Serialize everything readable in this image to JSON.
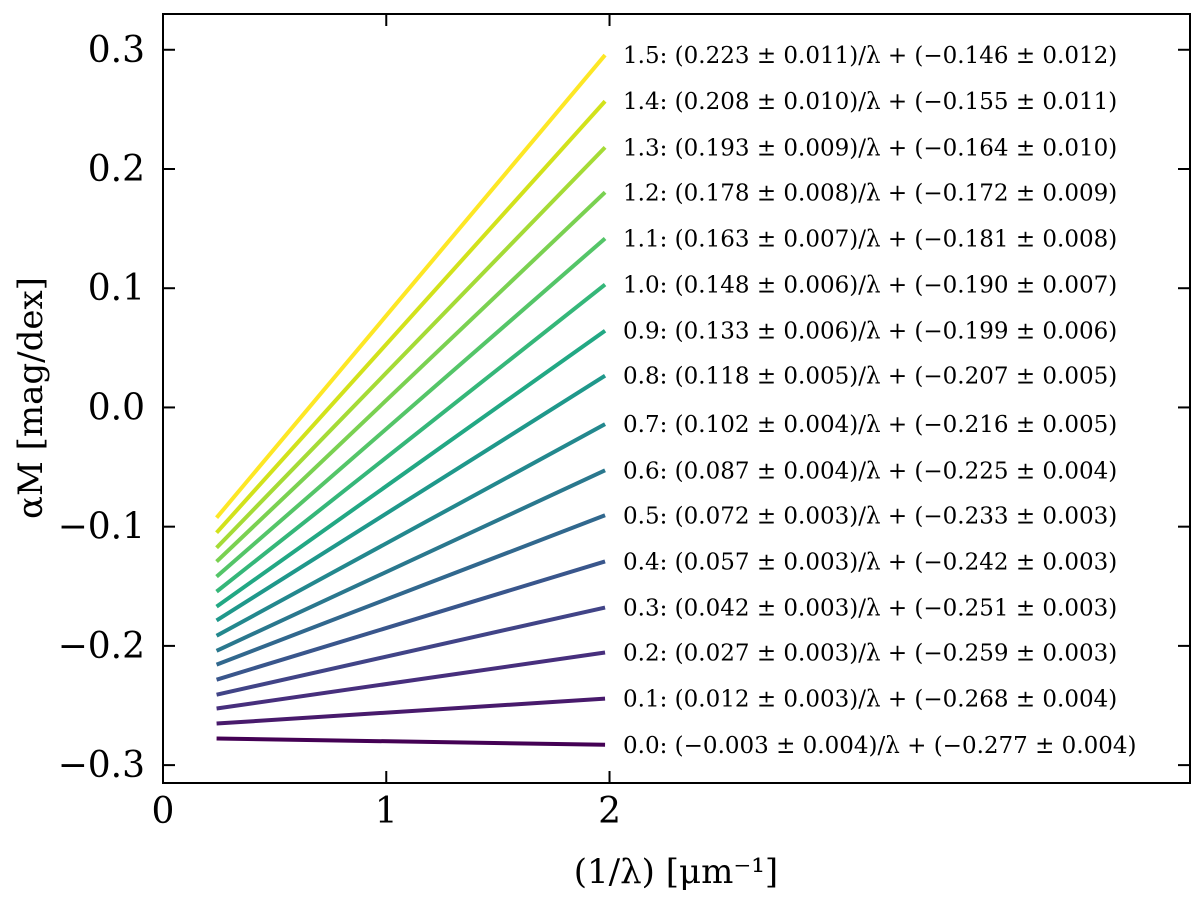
{
  "chart_data": {
    "type": "line",
    "title": "",
    "xlabel": "(1/λ) [μm⁻¹]",
    "ylabel": "αM [mag/dex]",
    "xlim": [
      0,
      4.6
    ],
    "ylim": [
      -0.315,
      0.33
    ],
    "x_ticks": [
      0,
      1,
      2
    ],
    "x_tick_labels": [
      "0",
      "1",
      "2"
    ],
    "y_ticks": [
      -0.3,
      -0.2,
      -0.1,
      0.0,
      0.1,
      0.2,
      0.3
    ],
    "y_tick_labels": [
      "−0.3",
      "−0.2",
      "−0.1",
      "0.0",
      "0.1",
      "0.2",
      "0.3"
    ],
    "x_start": 0.24,
    "x_end": 1.98,
    "grid": false,
    "series": [
      {
        "name": "0.0",
        "slope": -0.003,
        "intercept": -0.277,
        "color": "#440154",
        "label": "0.0: (−0.003 ± 0.004)/λ + (−0.277 ± 0.004)"
      },
      {
        "name": "0.1",
        "slope": 0.012,
        "intercept": -0.268,
        "color": "#481a6c",
        "label": "0.1: (0.012 ± 0.003)/λ + (−0.268 ± 0.004)"
      },
      {
        "name": "0.2",
        "slope": 0.027,
        "intercept": -0.259,
        "color": "#472f7d",
        "label": "0.2: (0.027 ± 0.003)/λ + (−0.259 ± 0.003)"
      },
      {
        "name": "0.3",
        "slope": 0.042,
        "intercept": -0.251,
        "color": "#414487",
        "label": "0.3: (0.042 ± 0.003)/λ + (−0.251 ± 0.003)"
      },
      {
        "name": "0.4",
        "slope": 0.057,
        "intercept": -0.242,
        "color": "#39568c",
        "label": "0.4: (0.057 ± 0.003)/λ + (−0.242 ± 0.003)"
      },
      {
        "name": "0.5",
        "slope": 0.072,
        "intercept": -0.233,
        "color": "#31688e",
        "label": "0.5: (0.072 ± 0.003)/λ + (−0.233 ± 0.003)"
      },
      {
        "name": "0.6",
        "slope": 0.087,
        "intercept": -0.225,
        "color": "#2a788e",
        "label": "0.6: (0.087 ± 0.004)/λ + (−0.225 ± 0.004)"
      },
      {
        "name": "0.7",
        "slope": 0.102,
        "intercept": -0.216,
        "color": "#23888e",
        "label": "0.7: (0.102 ± 0.004)/λ + (−0.216 ± 0.005)"
      },
      {
        "name": "0.8",
        "slope": 0.118,
        "intercept": -0.207,
        "color": "#1f988b",
        "label": "0.8: (0.118 ± 0.005)/λ + (−0.207 ± 0.005)"
      },
      {
        "name": "0.9",
        "slope": 0.133,
        "intercept": -0.199,
        "color": "#22a884",
        "label": "0.9: (0.133 ± 0.006)/λ + (−0.199 ± 0.006)"
      },
      {
        "name": "1.0",
        "slope": 0.148,
        "intercept": -0.19,
        "color": "#35b779",
        "label": "1.0: (0.148 ± 0.006)/λ + (−0.190 ± 0.007)"
      },
      {
        "name": "1.1",
        "slope": 0.163,
        "intercept": -0.181,
        "color": "#54c568",
        "label": "1.1: (0.163 ± 0.007)/λ + (−0.181 ± 0.008)"
      },
      {
        "name": "1.2",
        "slope": 0.178,
        "intercept": -0.172,
        "color": "#7ad151",
        "label": "1.2: (0.178 ± 0.008)/λ + (−0.172 ± 0.009)"
      },
      {
        "name": "1.3",
        "slope": 0.193,
        "intercept": -0.164,
        "color": "#a5db36",
        "label": "1.3: (0.193 ± 0.009)/λ + (−0.164 ± 0.010)"
      },
      {
        "name": "1.4",
        "slope": 0.208,
        "intercept": -0.155,
        "color": "#d2e21b",
        "label": "1.4: (0.208 ± 0.010)/λ + (−0.155 ± 0.011)"
      },
      {
        "name": "1.5",
        "slope": 0.223,
        "intercept": -0.146,
        "color": "#fde725",
        "label": "1.5: (0.223 ± 0.011)/λ + (−0.146 ± 0.012)"
      }
    ]
  }
}
